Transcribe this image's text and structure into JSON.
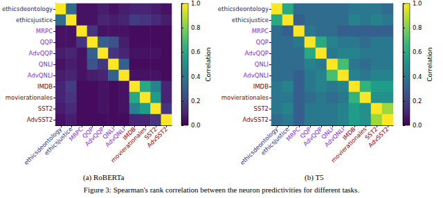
{
  "chart_data": [
    {
      "type": "heatmap",
      "title": "(a) RoBERTa",
      "categories": [
        "ethicsdeontology",
        "ethicsjustice",
        "MRPC",
        "QQP",
        "AdvQQP",
        "QNLI",
        "AdvQNLI",
        "IMDB",
        "movierationales",
        "SST2",
        "AdvSST2"
      ],
      "cells": [
        [
          1,
          0.35,
          0.05,
          0.05,
          0.08,
          0.05,
          0.08,
          0.1,
          0.1,
          0.08,
          0.05
        ],
        [
          0.35,
          1,
          0.05,
          0.05,
          0.1,
          0.08,
          0.1,
          0.18,
          0.15,
          0.12,
          0.08
        ],
        [
          0.05,
          0.05,
          1,
          0.15,
          0.05,
          0.05,
          0.05,
          0.03,
          0.03,
          0.03,
          0.03
        ],
        [
          0.05,
          0.05,
          0.15,
          1,
          0.3,
          0.25,
          0.08,
          0.03,
          0.03,
          0.03,
          0.03
        ],
        [
          0.08,
          0.1,
          0.05,
          0.3,
          1,
          0.15,
          0.1,
          0.05,
          0.05,
          0.05,
          0.03
        ],
        [
          0.05,
          0.08,
          0.05,
          0.25,
          0.15,
          1,
          0.3,
          0.03,
          0.03,
          0.03,
          0.03
        ],
        [
          0.08,
          0.1,
          0.05,
          0.08,
          0.1,
          0.3,
          1,
          0.05,
          0.05,
          0.05,
          0.03
        ],
        [
          0.1,
          0.18,
          0.03,
          0.03,
          0.05,
          0.03,
          0.05,
          1,
          0.6,
          0.45,
          0.1
        ],
        [
          0.1,
          0.15,
          0.03,
          0.03,
          0.05,
          0.03,
          0.05,
          0.6,
          1,
          0.55,
          0.1
        ],
        [
          0.08,
          0.12,
          0.03,
          0.03,
          0.05,
          0.03,
          0.05,
          0.45,
          0.55,
          1,
          0.15
        ],
        [
          0.05,
          0.08,
          0.03,
          0.03,
          0.03,
          0.03,
          0.03,
          0.1,
          0.1,
          0.15,
          1
        ]
      ],
      "colorbar": {
        "label": "Correlation",
        "range": [
          0,
          1
        ],
        "ticks": [
          {
            "value": 0,
            "label": "0.0"
          },
          {
            "value": 0.2,
            "label": "0.2"
          },
          {
            "value": 0.4,
            "label": "0.4"
          },
          {
            "value": 0.6,
            "label": "0.6"
          },
          {
            "value": 0.8,
            "label": "0.8"
          },
          {
            "value": 1,
            "label": "1.0"
          }
        ]
      }
    },
    {
      "type": "heatmap",
      "title": "(b) T5",
      "categories": [
        "ethicsdeontology",
        "ethicsjustice",
        "MRPC",
        "QQP",
        "AdvQQP",
        "QNLI",
        "AdvQNLI",
        "IMDB",
        "movierationales",
        "SST2",
        "AdvSST2"
      ],
      "cells": [
        [
          1,
          0.6,
          0.35,
          0.35,
          0.35,
          0.35,
          0.35,
          0.4,
          0.4,
          0.4,
          0.35
        ],
        [
          0.6,
          1,
          0.3,
          0.35,
          0.35,
          0.35,
          0.35,
          0.45,
          0.4,
          0.45,
          0.4
        ],
        [
          0.35,
          0.3,
          1,
          0.4,
          0.35,
          0.35,
          0.3,
          0.3,
          0.3,
          0.3,
          0.3
        ],
        [
          0.35,
          0.35,
          0.4,
          1,
          0.6,
          0.45,
          0.4,
          0.4,
          0.35,
          0.4,
          0.4
        ],
        [
          0.35,
          0.35,
          0.35,
          0.6,
          1,
          0.4,
          0.45,
          0.45,
          0.4,
          0.4,
          0.4
        ],
        [
          0.35,
          0.35,
          0.35,
          0.45,
          0.4,
          1,
          0.7,
          0.4,
          0.35,
          0.4,
          0.4
        ],
        [
          0.35,
          0.35,
          0.3,
          0.4,
          0.45,
          0.7,
          1,
          0.45,
          0.4,
          0.45,
          0.45
        ],
        [
          0.4,
          0.45,
          0.3,
          0.4,
          0.45,
          0.4,
          0.45,
          1,
          0.65,
          0.55,
          0.55
        ],
        [
          0.4,
          0.4,
          0.3,
          0.35,
          0.4,
          0.35,
          0.4,
          0.65,
          1,
          0.5,
          0.5
        ],
        [
          0.4,
          0.45,
          0.3,
          0.4,
          0.4,
          0.4,
          0.45,
          0.55,
          0.5,
          1,
          0.85
        ],
        [
          0.35,
          0.4,
          0.3,
          0.4,
          0.4,
          0.4,
          0.45,
          0.55,
          0.5,
          0.85,
          1
        ]
      ],
      "colorbar": {
        "label": "Correlation",
        "range": [
          0,
          1
        ],
        "ticks": [
          {
            "value": 0,
            "label": "0.0"
          },
          {
            "value": 0.2,
            "label": "0.2"
          },
          {
            "value": 0.4,
            "label": "0.4"
          },
          {
            "value": 0.6,
            "label": "0.6"
          },
          {
            "value": 0.8,
            "label": "0.8"
          },
          {
            "value": 1,
            "label": "1.0"
          }
        ]
      }
    }
  ],
  "caption": "Figure 3: Spearman's rank correlation between the neuron predictivities for different tasks."
}
